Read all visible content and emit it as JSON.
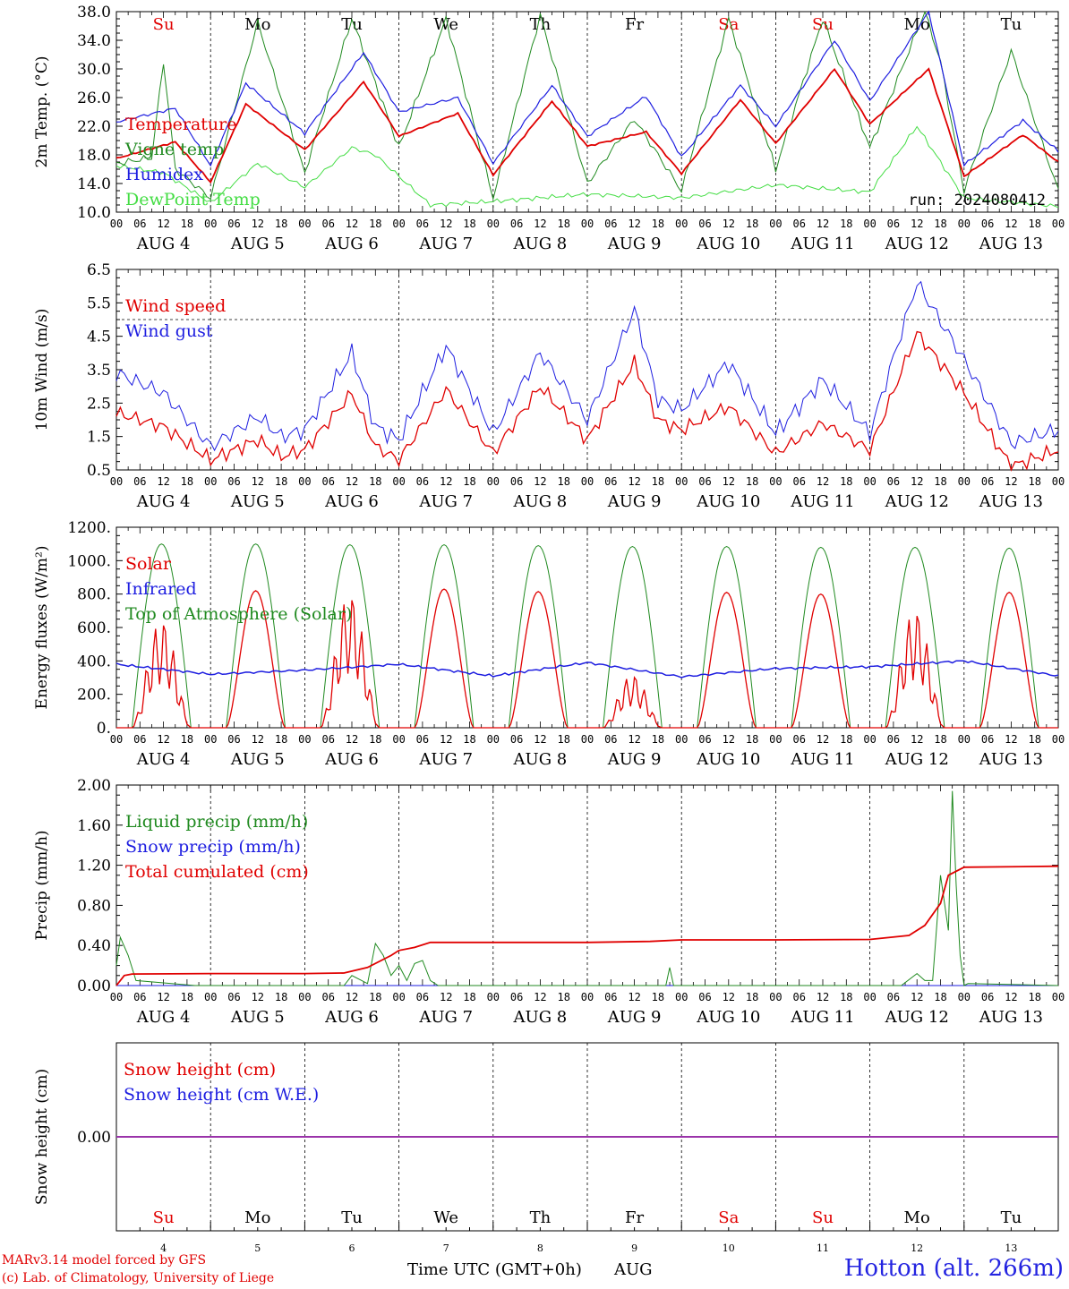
{
  "run_label": "run: 2024080412",
  "footer": {
    "credit_line1": "MARv3.14 model forced by GFS",
    "credit_line2": "(c) Lab. of Climatology, University of Liege",
    "location": "Hotton (alt. 266m)",
    "xlabel": "Time UTC (GMT+0h)",
    "month": "AUG"
  },
  "colors": {
    "red": "#e00000",
    "green": "#208a20",
    "blue": "#1e1ee0",
    "lightgreen": "#44dd44",
    "purple": "#9a33aa",
    "weekend": "#e00000",
    "weekday": "#000000"
  },
  "chart_data": [
    {
      "type": "line",
      "ylabel": "2m Temp. (°C)",
      "ylim": [
        10,
        38
      ],
      "yticks": [
        "10.0",
        "14.0",
        "18.0",
        "22.0",
        "26.0",
        "30.0",
        "34.0",
        "38.0"
      ],
      "x_hours": [
        "00",
        "06",
        "12",
        "18"
      ],
      "dates": [
        "AUG  4",
        "AUG  5",
        "AUG  6",
        "AUG  7",
        "AUG  8",
        "AUG  9",
        "AUG 10",
        "AUG 11",
        "AUG 12",
        "AUG 13"
      ],
      "weekdays": [
        "Su",
        "Mo",
        "Tu",
        "We",
        "Th",
        "Fr",
        "Sa",
        "Su",
        "Mo",
        "Tu"
      ],
      "weekend": [
        true,
        false,
        false,
        false,
        false,
        false,
        true,
        true,
        false,
        false
      ],
      "series": [
        {
          "name": "Temperature",
          "color": "red",
          "x": [
            0,
            15,
            24,
            33,
            48,
            63,
            72,
            87,
            96,
            111,
            120,
            135,
            144,
            159,
            168,
            183,
            192,
            207,
            216,
            231,
            240
          ],
          "y": [
            17.5,
            19.8,
            14.2,
            25.1,
            18.7,
            28.2,
            20.6,
            23.8,
            15.2,
            25.5,
            19.2,
            21.2,
            15.4,
            25.7,
            19.6,
            30.0,
            22.3,
            30.0,
            15.0,
            20.8,
            17.0
          ]
        },
        {
          "name": "Vigne temp",
          "color": "green",
          "x": [
            0,
            9,
            12,
            15,
            24,
            36,
            48,
            60,
            72,
            84,
            96,
            108,
            120,
            132,
            144,
            156,
            168,
            180,
            192,
            206,
            210,
            216,
            228,
            240
          ],
          "y": [
            16.8,
            17.6,
            31,
            16,
            12,
            36.5,
            15.5,
            37,
            19,
            37,
            12,
            37.5,
            14,
            23,
            13,
            37,
            16,
            37,
            19,
            38,
            31,
            13,
            32.5,
            13
          ]
        },
        {
          "name": "Humidex",
          "color": "blue",
          "x": [
            0,
            15,
            24,
            33,
            48,
            63,
            72,
            87,
            96,
            111,
            120,
            135,
            144,
            159,
            168,
            183,
            192,
            207,
            216,
            231,
            240
          ],
          "y": [
            22.6,
            24.5,
            16.5,
            28.0,
            21.0,
            32.3,
            24.0,
            26.0,
            16.8,
            27.7,
            20.6,
            26.2,
            17.7,
            27.7,
            22.0,
            34.0,
            25.5,
            38.0,
            16.6,
            22.8,
            18.5
          ]
        },
        {
          "name": "DewPoint Temp",
          "color": "lightgreen",
          "x": [
            0,
            12,
            24,
            36,
            48,
            60,
            66,
            80,
            96,
            120,
            144,
            168,
            192,
            204,
            216,
            240
          ],
          "y": [
            16.5,
            15.5,
            11.3,
            16.8,
            13.5,
            19.0,
            18.0,
            11.0,
            11.5,
            12.5,
            12.0,
            13.8,
            12.8,
            22.0,
            12.0,
            10.8
          ]
        }
      ]
    },
    {
      "type": "line",
      "ylabel": "10m Wind (m/s)",
      "ylim": [
        0.5,
        6.5
      ],
      "yticks": [
        "0.5",
        "1.5",
        "2.5",
        "3.5",
        "4.5",
        "5.5",
        "6.5"
      ],
      "x_hours": [
        "00",
        "06",
        "12",
        "18"
      ],
      "dates": [
        "AUG  4",
        "AUG  5",
        "AUG  6",
        "AUG  7",
        "AUG  8",
        "AUG  9",
        "AUG 10",
        "AUG 11",
        "AUG 12",
        "AUG 13"
      ],
      "ref_line": 5.0,
      "series": [
        {
          "name": "Wind speed",
          "color": "red",
          "x": [
            0,
            12,
            24,
            36,
            42,
            48,
            60,
            66,
            72,
            84,
            96,
            108,
            120,
            132,
            138,
            144,
            156,
            168,
            180,
            192,
            204,
            216,
            228,
            240
          ],
          "y": [
            2.2,
            1.8,
            0.8,
            1.4,
            0.9,
            1.1,
            2.8,
            1.2,
            0.8,
            2.9,
            1.0,
            3.0,
            1.4,
            3.7,
            2.0,
            1.7,
            2.4,
            1.0,
            1.9,
            1.1,
            4.6,
            2.8,
            0.6,
            1.1
          ]
        },
        {
          "name": "Wind gust",
          "color": "blue",
          "x": [
            0,
            12,
            24,
            36,
            42,
            48,
            60,
            66,
            72,
            84,
            96,
            108,
            120,
            132,
            138,
            144,
            156,
            168,
            180,
            192,
            204,
            216,
            228,
            240
          ],
          "y": [
            3.4,
            2.8,
            1.2,
            2.1,
            1.5,
            1.7,
            4.0,
            1.8,
            1.4,
            4.2,
            1.6,
            4.0,
            2.0,
            5.3,
            2.6,
            2.3,
            3.7,
            1.6,
            3.2,
            1.6,
            6.1,
            3.8,
            1.3,
            1.7
          ]
        }
      ]
    },
    {
      "type": "line",
      "ylabel": "Energy fluxes (W/m²)",
      "ylim": [
        0,
        1200
      ],
      "yticks": [
        "0.",
        "200.",
        "400.",
        "600.",
        "800.",
        "1000.",
        "1200."
      ],
      "x_hours": [
        "00",
        "06",
        "12",
        "18"
      ],
      "dates": [
        "AUG  4",
        "AUG  5",
        "AUG  6",
        "AUG  7",
        "AUG  8",
        "AUG  9",
        "AUG 10",
        "AUG 11",
        "AUG 12",
        "AUG 13"
      ],
      "series": [
        {
          "name": "Solar",
          "color": "red",
          "daily_peak": [
            650,
            820,
            810,
            830,
            815,
            320,
            810,
            800,
            710,
            810
          ]
        },
        {
          "name": "Infrared",
          "color": "blue",
          "x": [
            0,
            24,
            48,
            72,
            96,
            120,
            144,
            168,
            192,
            216,
            240
          ],
          "y": [
            380,
            320,
            345,
            380,
            310,
            390,
            305,
            355,
            365,
            400,
            310
          ]
        },
        {
          "name": "Top of Atmosphere (Solar)",
          "color": "green",
          "daily_peak": [
            1100,
            1100,
            1095,
            1095,
            1090,
            1085,
            1085,
            1080,
            1080,
            1075
          ]
        }
      ]
    },
    {
      "type": "line",
      "ylabel": "Precip (mm/h)",
      "ylim": [
        0,
        2.0
      ],
      "yticks": [
        "0.00",
        "0.40",
        "0.80",
        "1.20",
        "1.60",
        "2.00"
      ],
      "x_hours": [
        "00",
        "06",
        "12",
        "18"
      ],
      "dates": [
        "AUG  4",
        "AUG  5",
        "AUG  6",
        "AUG  7",
        "AUG  8",
        "AUG  9",
        "AUG 10",
        "AUG 11",
        "AUG 12",
        "AUG 13"
      ],
      "series": [
        {
          "name": "Liquid precip (mm/h)",
          "color": "green",
          "x": [
            0,
            1,
            3,
            5,
            20,
            58,
            60,
            64,
            66,
            68,
            70,
            72,
            74,
            76,
            78,
            80,
            82,
            140,
            141,
            142,
            200,
            204,
            206,
            208,
            210,
            212,
            213,
            214,
            215,
            216,
            217,
            240
          ],
          "y": [
            0.2,
            0.48,
            0.3,
            0.05,
            0,
            0,
            0.1,
            0.02,
            0.42,
            0.3,
            0.1,
            0.2,
            0.05,
            0.22,
            0.25,
            0.05,
            0,
            0,
            0.18,
            0,
            0,
            0.12,
            0.05,
            0.05,
            1.1,
            0.55,
            1.94,
            1.0,
            0.3,
            0,
            0.02,
            0
          ]
        },
        {
          "name": "Snow precip (mm/h)",
          "color": "blue",
          "x": [
            0,
            240
          ],
          "y": [
            0,
            0
          ]
        },
        {
          "name": "Total cumulated (cm)",
          "color": "red",
          "x": [
            0,
            2,
            4,
            24,
            48,
            58,
            64,
            70,
            72,
            76,
            80,
            96,
            120,
            136,
            144,
            168,
            192,
            202,
            206,
            210,
            212,
            216,
            240
          ],
          "y": [
            0,
            0.1,
            0.115,
            0.12,
            0.12,
            0.125,
            0.18,
            0.3,
            0.35,
            0.38,
            0.43,
            0.43,
            0.43,
            0.44,
            0.455,
            0.455,
            0.46,
            0.5,
            0.6,
            0.82,
            1.1,
            1.18,
            1.19
          ]
        }
      ]
    },
    {
      "type": "line",
      "ylabel": "Snow height (cm)",
      "yticks": [
        "0.00"
      ],
      "weekdays": [
        "Su",
        "Mo",
        "Tu",
        "We",
        "Th",
        "Fr",
        "Sa",
        "Su",
        "Mo",
        "Tu"
      ],
      "day_numbers": [
        "4",
        "5",
        "6",
        "7",
        "8",
        "9",
        "10",
        "11",
        "12",
        "13"
      ],
      "series": [
        {
          "name": "Snow height (cm)",
          "color": "red",
          "x": [
            0,
            240
          ],
          "y": [
            0,
            0
          ]
        },
        {
          "name": "Snow height (cm W.E.)",
          "color": "blue",
          "x": [
            0,
            240
          ],
          "y": [
            0,
            0
          ]
        }
      ]
    }
  ]
}
